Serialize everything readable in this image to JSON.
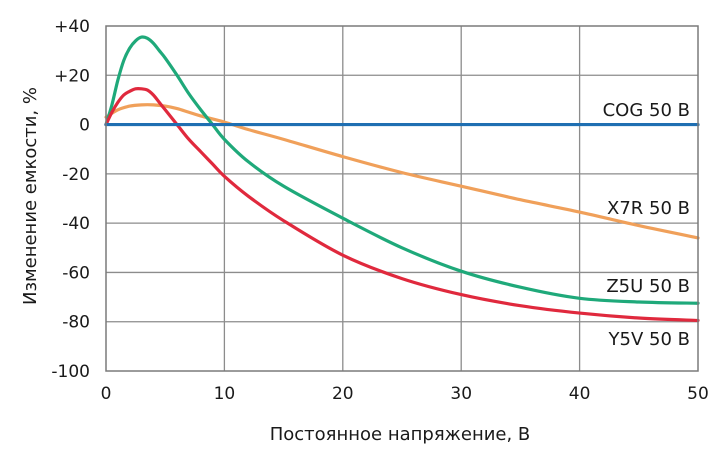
{
  "chart_data": {
    "type": "line",
    "xlabel": "Постоянное напряжение, В",
    "ylabel": "Изменение емкости, %",
    "xlim": [
      0,
      50
    ],
    "ylim": [
      -100,
      40
    ],
    "x_ticks": [
      {
        "value": 0,
        "label": "0"
      },
      {
        "value": 10,
        "label": "10"
      },
      {
        "value": 20,
        "label": "20"
      },
      {
        "value": 30,
        "label": "30"
      },
      {
        "value": 40,
        "label": "40"
      },
      {
        "value": 50,
        "label": "50"
      }
    ],
    "y_ticks": [
      {
        "value": 40,
        "label": "+40"
      },
      {
        "value": 20,
        "label": "+20"
      },
      {
        "value": 0,
        "label": "0"
      },
      {
        "value": -20,
        "label": "-20"
      },
      {
        "value": -40,
        "label": "-40"
      },
      {
        "value": -60,
        "label": "-60"
      },
      {
        "value": -80,
        "label": "-80"
      },
      {
        "value": -100,
        "label": "-100"
      }
    ],
    "grid": true,
    "series": [
      {
        "name": "COG 50 В",
        "color": "#1f6fb2",
        "x": [
          0,
          50
        ],
        "y": [
          0,
          0
        ]
      },
      {
        "name": "X7R 50 В",
        "color": "#f0a05a",
        "x": [
          0,
          1,
          2,
          3,
          4,
          5,
          6,
          7,
          8,
          10,
          12,
          15,
          20,
          25,
          30,
          35,
          40,
          45,
          50
        ],
        "y": [
          3,
          6,
          7.5,
          8,
          8,
          7.5,
          6.5,
          5,
          3.5,
          1,
          -2,
          -6,
          -13,
          -19.5,
          -25,
          -30.5,
          -35.5,
          -41,
          -46
        ]
      },
      {
        "name": "Z5U 50 В",
        "color": "#1fa97a",
        "x": [
          0,
          0.5,
          1,
          1.5,
          2,
          2.5,
          3,
          3.5,
          4,
          4.5,
          5,
          6,
          7,
          8,
          9,
          10,
          12,
          15,
          20,
          25,
          30,
          35,
          40,
          45,
          50
        ],
        "y": [
          0,
          8,
          18,
          26,
          31,
          34,
          35.5,
          35,
          33,
          30,
          27,
          20,
          12.5,
          6,
          0,
          -6,
          -15,
          -25,
          -38,
          -50,
          -59.5,
          -66,
          -70.5,
          -72,
          -72.5
        ]
      },
      {
        "name": "Y5V 50 В",
        "color": "#e0293d",
        "x": [
          0,
          0.5,
          1,
          1.5,
          2,
          2.5,
          3,
          3.5,
          4,
          4.5,
          5,
          6,
          7,
          8,
          9,
          10,
          12,
          15,
          20,
          25,
          30,
          35,
          40,
          45,
          50
        ],
        "y": [
          0,
          5,
          9,
          12,
          13.5,
          14.5,
          14.5,
          14,
          12,
          9,
          6,
          0,
          -6,
          -11,
          -16,
          -21,
          -29,
          -39,
          -53,
          -62.5,
          -69,
          -73.5,
          -76.5,
          -78.5,
          -79.5
        ]
      }
    ]
  }
}
